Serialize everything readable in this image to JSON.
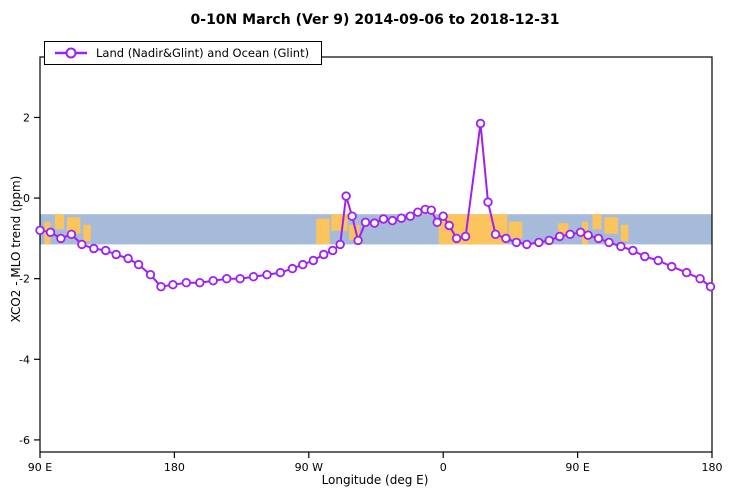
{
  "title": "0-10N March (Ver 9)   2014-09-06 to 2018-12-31",
  "legend": {
    "label": "Land (Nadir&Glint) and Ocean (Glint)"
  },
  "axes": {
    "xlabel": "Longitude (deg E)",
    "ylabel": "XCO2 - MLO trend (ppm)",
    "x_ticks": [
      {
        "lon": 90,
        "label": "90 E"
      },
      {
        "lon": 180,
        "label": "180"
      },
      {
        "lon": 270,
        "label": "90 W"
      },
      {
        "lon": 360,
        "label": "0"
      },
      {
        "lon": 450,
        "label": "90 E"
      },
      {
        "lon": 540,
        "label": "180"
      }
    ],
    "y_ticks": [
      {
        "value": 2,
        "label": "2"
      },
      {
        "value": 0,
        "label": "0"
      },
      {
        "value": -2,
        "label": "-2"
      },
      {
        "value": -4,
        "label": "-4"
      },
      {
        "value": -6,
        "label": "-6"
      }
    ]
  },
  "colors": {
    "series": "#A020F0",
    "marker_fill": "#ffffff",
    "ocean_band": "#A6BBD9",
    "land_patch": "#FCC45C",
    "frame": "#000000"
  },
  "chart_data": {
    "type": "line",
    "title": "0-10N March (Ver 9)   2014-09-06 to 2018-12-31",
    "xlabel": "Longitude (deg E)",
    "ylabel": "XCO2 - MLO trend (ppm)",
    "xlim": [
      90,
      540
    ],
    "ylim": [
      -6.3,
      3.5
    ],
    "grid": false,
    "legend_position": "top-left",
    "x_axis_note": "longitude wraps the globe: 90E -> 180 -> 90W -> 0 -> 90E -> 180",
    "map_band": {
      "description": "0-10N latitude strip map drawn as horizontal band: blue = ocean, orange = land",
      "ocean_from": -0.4,
      "ocean_to": -1.15,
      "land_patches": [
        [
          93,
          97,
          0.25,
          1.0
        ],
        [
          100,
          106,
          0.0,
          0.5
        ],
        [
          108,
          117,
          0.1,
          0.65
        ],
        [
          119,
          124,
          0.35,
          0.9
        ],
        [
          275,
          284,
          0.15,
          1.0
        ],
        [
          285,
          296,
          0.0,
          0.55
        ],
        [
          297,
          304,
          0.35,
          0.85
        ],
        [
          357,
          403,
          0.0,
          1.0
        ],
        [
          404,
          413,
          0.25,
          0.8
        ],
        [
          437,
          444,
          0.3,
          0.75
        ],
        [
          453,
          457,
          0.25,
          1.0
        ],
        [
          460,
          466,
          0.0,
          0.5
        ],
        [
          468,
          477,
          0.1,
          0.65
        ],
        [
          479,
          484,
          0.35,
          0.9
        ]
      ]
    },
    "series": [
      {
        "name": "Land (Nadir&Glint) and Ocean (Glint)",
        "marker": "open-circle",
        "points": [
          [
            90,
            -0.8
          ],
          [
            97,
            -0.85
          ],
          [
            104,
            -1.0
          ],
          [
            111,
            -0.9
          ],
          [
            118,
            -1.15
          ],
          [
            126,
            -1.25
          ],
          [
            134,
            -1.3
          ],
          [
            141,
            -1.4
          ],
          [
            149,
            -1.5
          ],
          [
            156,
            -1.65
          ],
          [
            164,
            -1.9
          ],
          [
            171,
            -2.2
          ],
          [
            179,
            -2.15
          ],
          [
            188,
            -2.1
          ],
          [
            197,
            -2.1
          ],
          [
            206,
            -2.05
          ],
          [
            215,
            -2.0
          ],
          [
            224,
            -2.0
          ],
          [
            233,
            -1.95
          ],
          [
            242,
            -1.9
          ],
          [
            251,
            -1.85
          ],
          [
            259,
            -1.75
          ],
          [
            266,
            -1.65
          ],
          [
            273,
            -1.55
          ],
          [
            280,
            -1.4
          ],
          [
            286,
            -1.3
          ],
          [
            291,
            -1.15
          ],
          [
            295,
            0.05
          ],
          [
            299,
            -0.45
          ],
          [
            303,
            -1.05
          ],
          [
            308,
            -0.6
          ],
          [
            314,
            -0.62
          ],
          [
            320,
            -0.52
          ],
          [
            326,
            -0.56
          ],
          [
            332,
            -0.5
          ],
          [
            338,
            -0.45
          ],
          [
            343,
            -0.35
          ],
          [
            348,
            -0.28
          ],
          [
            352,
            -0.3
          ],
          [
            356,
            -0.6
          ],
          [
            360,
            -0.45
          ],
          [
            364,
            -0.68
          ],
          [
            369,
            -1.0
          ],
          [
            375,
            -0.95
          ],
          [
            385,
            1.85
          ],
          [
            390,
            -0.1
          ],
          [
            395,
            -0.9
          ],
          [
            402,
            -1.0
          ],
          [
            409,
            -1.1
          ],
          [
            416,
            -1.15
          ],
          [
            424,
            -1.1
          ],
          [
            431,
            -1.05
          ],
          [
            438,
            -0.95
          ],
          [
            445,
            -0.9
          ],
          [
            452,
            -0.85
          ],
          [
            457,
            -0.92
          ],
          [
            464,
            -1.0
          ],
          [
            471,
            -1.1
          ],
          [
            479,
            -1.2
          ],
          [
            487,
            -1.3
          ],
          [
            495,
            -1.45
          ],
          [
            504,
            -1.55
          ],
          [
            513,
            -1.7
          ],
          [
            523,
            -1.85
          ],
          [
            532,
            -2.0
          ],
          [
            539,
            -2.2
          ]
        ]
      }
    ]
  }
}
